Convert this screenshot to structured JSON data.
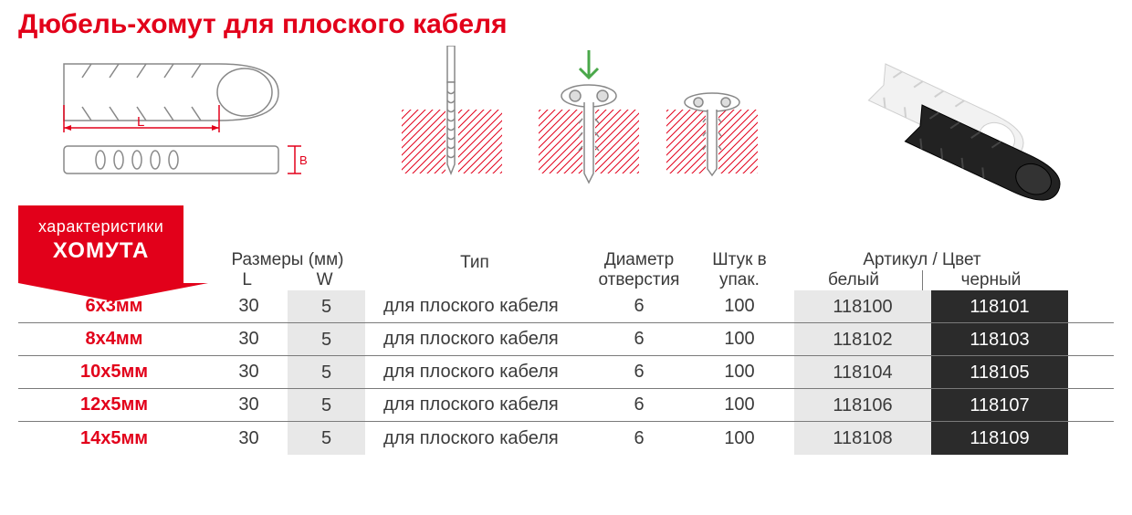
{
  "title": "Дюбель-хомут для плоского кабеля",
  "badge": {
    "line1": "характеристики",
    "line2": "ХОМУТА"
  },
  "diagram": {
    "dim_L_label": "L",
    "dim_B_label": "B",
    "hatch_color": "#e2001a",
    "line_color": "#888888",
    "arrow_color": "#4aa84a"
  },
  "columns": {
    "sizes_header": "Размеры (мм)",
    "L": "L",
    "W": "W",
    "type": "Тип",
    "diameter": "Диаметр отверстия",
    "pack": "Штук в упак.",
    "article_header": "Артикул / Цвет",
    "white": "белый",
    "black": "черный"
  },
  "rows": [
    {
      "size": "6x3мм",
      "L": "30",
      "W": "5",
      "type": "для плоского кабеля",
      "diam": "6",
      "pack": "100",
      "art_white": "118100",
      "art_black": "118101"
    },
    {
      "size": "8x4мм",
      "L": "30",
      "W": "5",
      "type": "для плоского кабеля",
      "diam": "6",
      "pack": "100",
      "art_white": "118102",
      "art_black": "118103"
    },
    {
      "size": "10x5мм",
      "L": "30",
      "W": "5",
      "type": "для плоского кабеля",
      "diam": "6",
      "pack": "100",
      "art_white": "118104",
      "art_black": "118105"
    },
    {
      "size": "12x5мм",
      "L": "30",
      "W": "5",
      "type": "для плоского кабеля",
      "diam": "6",
      "pack": "100",
      "art_white": "118106",
      "art_black": "118107"
    },
    {
      "size": "14x5мм",
      "L": "30",
      "W": "5",
      "type": "для плоского кабеля",
      "diam": "6",
      "pack": "100",
      "art_white": "118108",
      "art_black": "118109"
    }
  ],
  "colors": {
    "accent": "#e2001a",
    "text": "#3a3a3a",
    "grey_bg": "#e8e8e8",
    "black_bg": "#2b2b2b",
    "border": "#7a7a7a"
  },
  "typography": {
    "title_fontsize": 30,
    "header_fontsize": 19,
    "cell_fontsize": 20,
    "badge_small": 18,
    "badge_big": 24
  }
}
